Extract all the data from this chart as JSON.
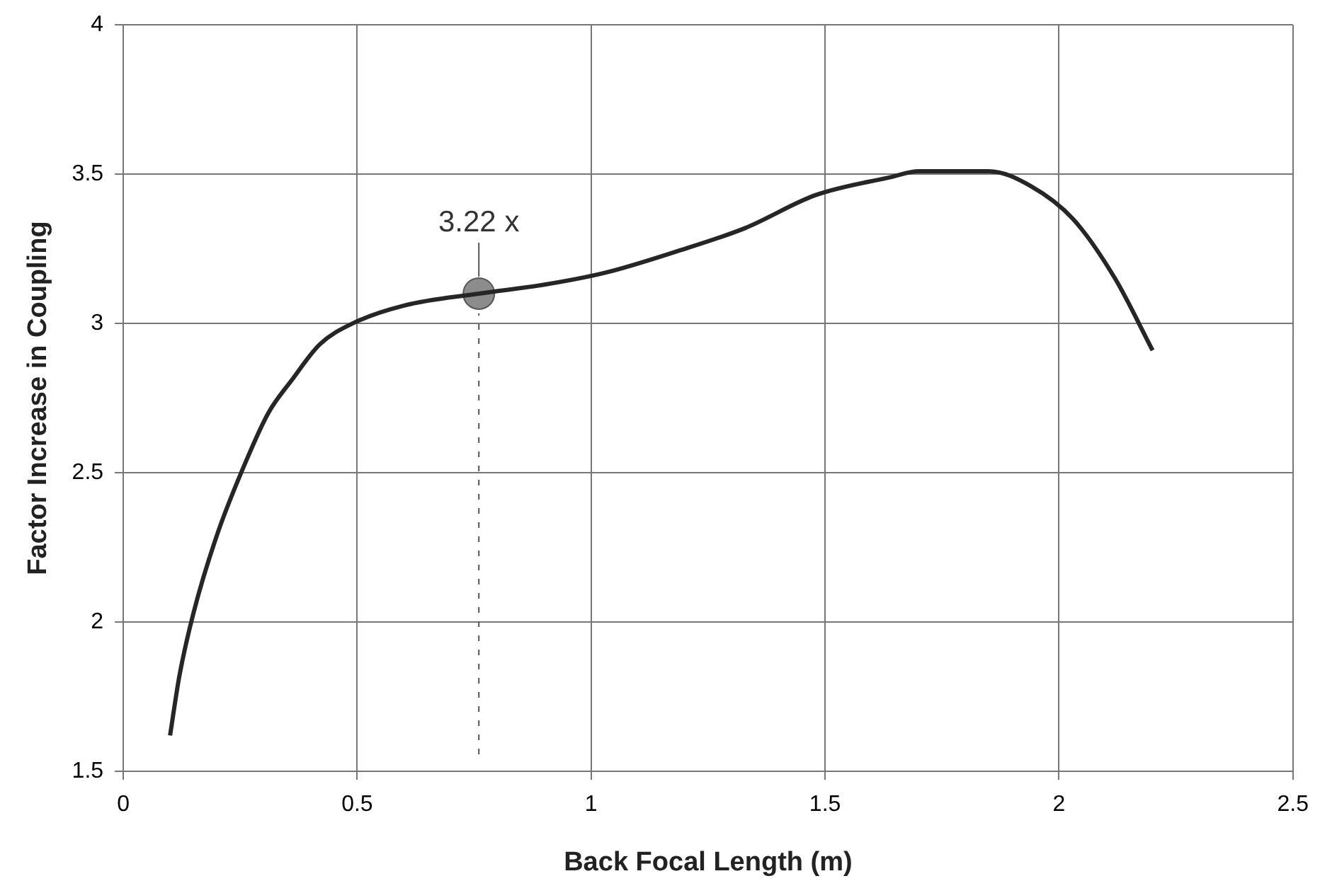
{
  "chart_data": {
    "type": "line",
    "xlabel": "Back Focal Length (m)",
    "ylabel": "Factor Increase in Coupling",
    "xlim": [
      0,
      2.5
    ],
    "xticks": [
      0,
      0.5,
      1,
      1.5,
      2,
      2.5
    ],
    "ylim": [
      1.5,
      4
    ],
    "yticks": [
      1.5,
      2,
      2.5,
      3,
      3.5,
      4
    ],
    "grid": true,
    "marker": "none",
    "line_style": "solid",
    "series": [
      {
        "color": "#262626",
        "x": [
          0.1,
          0.12,
          0.15,
          0.2,
          0.26,
          0.31,
          0.36,
          0.42,
          0.49,
          0.6,
          0.76,
          0.9,
          1.03,
          1.18,
          1.33,
          1.48,
          1.64,
          1.7,
          1.85,
          1.94,
          2.03,
          2.12,
          2.2
        ],
        "values": [
          1.62,
          1.82,
          2.03,
          2.29,
          2.53,
          2.7,
          2.81,
          2.93,
          3.0,
          3.06,
          3.1,
          3.13,
          3.17,
          3.24,
          3.32,
          3.43,
          3.49,
          3.51,
          3.51,
          3.46,
          3.35,
          3.15,
          2.91
        ]
      },
      {
        "type": "scatter",
        "color": "#8c8c8c",
        "marker": "circle",
        "x": [
          0.76
        ],
        "values": [
          3.1
        ]
      }
    ],
    "ref_lines": [
      {
        "axis": "x",
        "value": 0.76,
        "color": "#555555",
        "line_style": "dashed"
      }
    ],
    "annotations": [
      {
        "text": "3.22 x",
        "x": 0.76,
        "y": 3.1
      }
    ]
  }
}
